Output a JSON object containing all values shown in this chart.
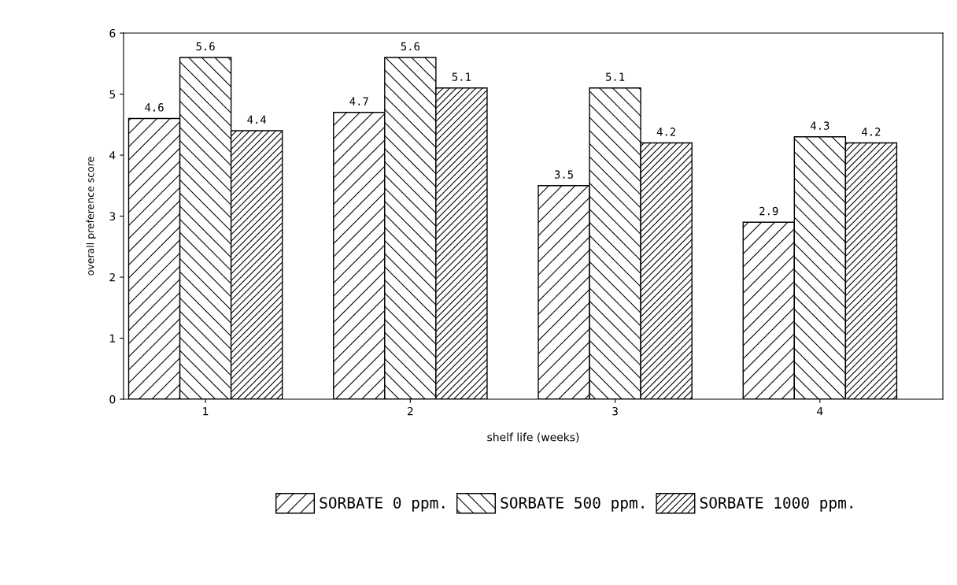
{
  "chart_data": {
    "type": "bar",
    "categories": [
      "1",
      "2",
      "3",
      "4"
    ],
    "xlabel": "shelf life (weeks)",
    "ylabel": "overall preference score",
    "series": [
      {
        "name": "SORBATE 0 ppm.",
        "color": "#000000",
        "values": [
          4.6,
          4.7,
          3.5,
          2.9
        ]
      },
      {
        "name": "SORBATE 500 ppm.",
        "color": "#000000",
        "values": [
          5.6,
          5.6,
          5.1,
          4.3
        ]
      },
      {
        "name": "SORBATE 1000 ppm.",
        "color": "#000000",
        "values": [
          4.4,
          5.1,
          4.2,
          4.2
        ]
      }
    ],
    "ylim": [
      0,
      6
    ],
    "yticks": [
      0,
      1,
      2,
      3,
      4,
      5,
      6
    ],
    "data_labels": true,
    "grid": false,
    "legend": "bottom"
  }
}
